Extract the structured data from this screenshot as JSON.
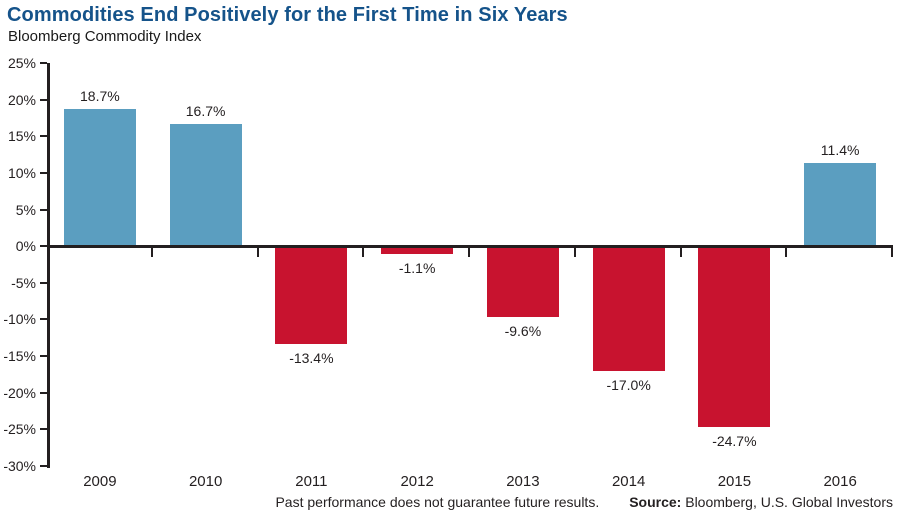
{
  "header": {
    "title": "Commodities End Positively for the First Time in Six Years",
    "subtitle": "Bloomberg Commodity Index"
  },
  "footer": {
    "disclaimer": "Past performance does not guarantee future results.",
    "source_label": "Source:",
    "source_text": "Bloomberg, U.S. Global Investors"
  },
  "colors": {
    "positive_bar": "#5B9EC0",
    "negative_bar": "#C8132F",
    "title_text": "#15538A",
    "axis": "#231F20"
  },
  "chart_data": {
    "type": "bar",
    "title": "Commodities End Positively for the First Time in Six Years",
    "subtitle": "Bloomberg Commodity Index",
    "categories": [
      "2009",
      "2010",
      "2011",
      "2012",
      "2013",
      "2014",
      "2015",
      "2016"
    ],
    "values": [
      18.7,
      16.7,
      -13.4,
      -1.1,
      -9.6,
      -17.0,
      -24.7,
      11.4
    ],
    "value_labels": [
      "18.7%",
      "16.7%",
      "-13.4%",
      "-1.1%",
      "-9.6%",
      "-17.0%",
      "-24.7%",
      "11.4%"
    ],
    "xlabel": "",
    "ylabel": "",
    "ylim": [
      -30,
      25
    ],
    "ytick_step": 5,
    "ytick_labels": [
      "25%",
      "20%",
      "15%",
      "10%",
      "5%",
      "0%",
      "-5%",
      "-10%",
      "-15%",
      "-20%",
      "-25%",
      "-30%"
    ],
    "grid": false,
    "legend": false,
    "bar_color_rule": "positive values blue, negative values red"
  }
}
